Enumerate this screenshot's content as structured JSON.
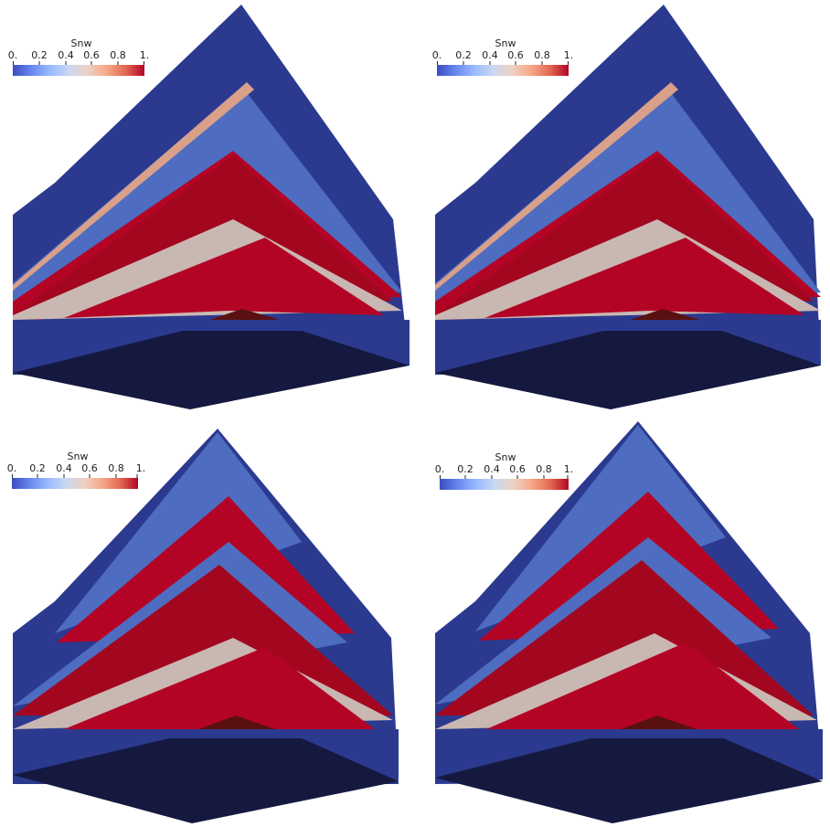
{
  "panels": [
    {
      "colorbar": {
        "title": "Snw",
        "ticks": [
          "0.",
          "0.2",
          "0.4",
          "0.6",
          "0.8",
          "1."
        ]
      }
    },
    {
      "colorbar": {
        "title": "Snw",
        "ticks": [
          "0.",
          "0.2",
          "0.4",
          "0.6",
          "0.8",
          "1."
        ]
      }
    },
    {
      "colorbar": {
        "title": "Snw",
        "ticks": [
          "0.",
          "0.2",
          "0.4",
          "0.6",
          "0.8",
          "1."
        ]
      }
    },
    {
      "colorbar": {
        "title": "Snw",
        "ticks": [
          "0.",
          "0.2",
          "0.4",
          "0.6",
          "0.8",
          "1."
        ]
      }
    }
  ],
  "colors": {
    "low": "#3b4cc0",
    "mid": "#dddcdc",
    "high": "#b40426",
    "dark_red": "#5a1010",
    "bottom_face": "#15193f",
    "side_blue": "#2b3a8f",
    "light_blue": "#4e6cc0"
  }
}
